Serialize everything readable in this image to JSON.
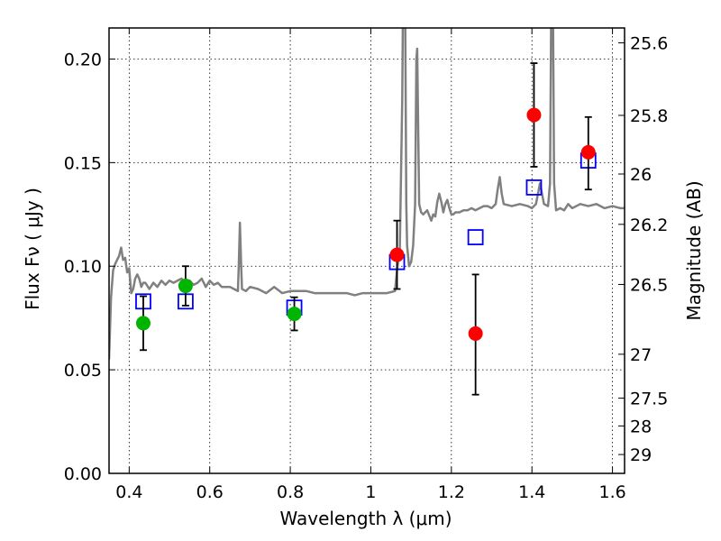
{
  "chart_data": {
    "type": "scatter",
    "xlabel": "Wavelength  λ (μm)",
    "ylabel": "Flux  Fν  ( μJy )",
    "y2label": "Magnitude (AB)",
    "xlim": [
      0.35,
      1.63
    ],
    "ylim": [
      0.0,
      0.215
    ],
    "grid": true,
    "xticks": [
      {
        "value": 0.4,
        "label": "0.4"
      },
      {
        "value": 0.6,
        "label": "0.6"
      },
      {
        "value": 0.8,
        "label": "0.8"
      },
      {
        "value": 1.0,
        "label": "1"
      },
      {
        "value": 1.2,
        "label": "1.2"
      },
      {
        "value": 1.4,
        "label": "1.4"
      },
      {
        "value": 1.6,
        "label": "1.6"
      }
    ],
    "yticks": [
      {
        "value": 0.0,
        "label": "0.00"
      },
      {
        "value": 0.05,
        "label": "0.05"
      },
      {
        "value": 0.1,
        "label": "0.10"
      },
      {
        "value": 0.15,
        "label": "0.15"
      },
      {
        "value": 0.2,
        "label": "0.20"
      }
    ],
    "y2ticks": [
      {
        "flux": 0.2078,
        "label": "25.6"
      },
      {
        "flux": 0.1728,
        "label": "25.8"
      },
      {
        "flux": 0.1445,
        "label": "26"
      },
      {
        "flux": 0.1202,
        "label": "26.2"
      },
      {
        "flux": 0.0912,
        "label": "26.5"
      },
      {
        "flux": 0.0575,
        "label": "27"
      },
      {
        "flux": 0.0363,
        "label": "27.5"
      },
      {
        "flux": 0.0229,
        "label": "28"
      },
      {
        "flux": 0.0091,
        "label": "29"
      }
    ],
    "colors": {
      "model": "#808080",
      "model_photometry": "#0000ff",
      "optical": "#00b400",
      "nir": "#ff0000",
      "errorbar": "#000000"
    },
    "model_spectrum": [
      [
        0.35,
        0.055
      ],
      [
        0.355,
        0.085
      ],
      [
        0.36,
        0.098
      ],
      [
        0.365,
        0.101
      ],
      [
        0.37,
        0.103
      ],
      [
        0.375,
        0.105
      ],
      [
        0.38,
        0.109
      ],
      [
        0.385,
        0.103
      ],
      [
        0.39,
        0.104
      ],
      [
        0.395,
        0.097
      ],
      [
        0.4,
        0.099
      ],
      [
        0.405,
        0.087
      ],
      [
        0.41,
        0.089
      ],
      [
        0.415,
        0.094
      ],
      [
        0.42,
        0.096
      ],
      [
        0.425,
        0.094
      ],
      [
        0.43,
        0.09
      ],
      [
        0.435,
        0.092
      ],
      [
        0.44,
        0.092
      ],
      [
        0.45,
        0.089
      ],
      [
        0.46,
        0.092
      ],
      [
        0.47,
        0.09
      ],
      [
        0.48,
        0.093
      ],
      [
        0.49,
        0.091
      ],
      [
        0.5,
        0.093
      ],
      [
        0.51,
        0.092
      ],
      [
        0.52,
        0.093
      ],
      [
        0.53,
        0.094
      ],
      [
        0.54,
        0.092
      ],
      [
        0.55,
        0.093
      ],
      [
        0.56,
        0.091
      ],
      [
        0.57,
        0.092
      ],
      [
        0.58,
        0.094
      ],
      [
        0.59,
        0.09
      ],
      [
        0.6,
        0.093
      ],
      [
        0.61,
        0.091
      ],
      [
        0.62,
        0.092
      ],
      [
        0.63,
        0.09
      ],
      [
        0.64,
        0.09
      ],
      [
        0.65,
        0.09
      ],
      [
        0.66,
        0.089
      ],
      [
        0.67,
        0.088
      ],
      [
        0.672,
        0.1
      ],
      [
        0.675,
        0.121
      ],
      [
        0.678,
        0.1
      ],
      [
        0.68,
        0.089
      ],
      [
        0.69,
        0.088
      ],
      [
        0.7,
        0.09
      ],
      [
        0.72,
        0.089
      ],
      [
        0.74,
        0.087
      ],
      [
        0.76,
        0.09
      ],
      [
        0.78,
        0.087
      ],
      [
        0.8,
        0.088
      ],
      [
        0.82,
        0.088
      ],
      [
        0.84,
        0.088
      ],
      [
        0.86,
        0.087
      ],
      [
        0.88,
        0.087
      ],
      [
        0.9,
        0.087
      ],
      [
        0.92,
        0.087
      ],
      [
        0.94,
        0.087
      ],
      [
        0.96,
        0.086
      ],
      [
        0.98,
        0.087
      ],
      [
        1.0,
        0.087
      ],
      [
        1.02,
        0.087
      ],
      [
        1.04,
        0.087
      ],
      [
        1.06,
        0.088
      ],
      [
        1.065,
        0.098
      ],
      [
        1.072,
        0.108
      ],
      [
        1.078,
        0.18
      ],
      [
        1.08,
        0.23
      ],
      [
        1.085,
        0.23
      ],
      [
        1.088,
        0.13
      ],
      [
        1.09,
        0.11
      ],
      [
        1.095,
        0.1
      ],
      [
        1.1,
        0.102
      ],
      [
        1.105,
        0.11
      ],
      [
        1.11,
        0.13
      ],
      [
        1.113,
        0.2
      ],
      [
        1.115,
        0.205
      ],
      [
        1.118,
        0.16
      ],
      [
        1.12,
        0.13
      ],
      [
        1.125,
        0.126
      ],
      [
        1.13,
        0.125
      ],
      [
        1.14,
        0.127
      ],
      [
        1.15,
        0.122
      ],
      [
        1.155,
        0.125
      ],
      [
        1.16,
        0.124
      ],
      [
        1.165,
        0.131
      ],
      [
        1.17,
        0.135
      ],
      [
        1.175,
        0.131
      ],
      [
        1.18,
        0.126
      ],
      [
        1.185,
        0.13
      ],
      [
        1.19,
        0.132
      ],
      [
        1.195,
        0.128
      ],
      [
        1.2,
        0.125
      ],
      [
        1.205,
        0.125
      ],
      [
        1.21,
        0.126
      ],
      [
        1.22,
        0.126
      ],
      [
        1.23,
        0.127
      ],
      [
        1.24,
        0.127
      ],
      [
        1.25,
        0.128
      ],
      [
        1.26,
        0.127
      ],
      [
        1.27,
        0.128
      ],
      [
        1.28,
        0.129
      ],
      [
        1.29,
        0.129
      ],
      [
        1.3,
        0.128
      ],
      [
        1.31,
        0.13
      ],
      [
        1.315,
        0.137
      ],
      [
        1.32,
        0.143
      ],
      [
        1.325,
        0.135
      ],
      [
        1.33,
        0.13
      ],
      [
        1.35,
        0.129
      ],
      [
        1.37,
        0.13
      ],
      [
        1.39,
        0.129
      ],
      [
        1.4,
        0.128
      ],
      [
        1.41,
        0.13
      ],
      [
        1.42,
        0.14
      ],
      [
        1.43,
        0.13
      ],
      [
        1.44,
        0.129
      ],
      [
        1.445,
        0.14
      ],
      [
        1.448,
        0.23
      ],
      [
        1.452,
        0.23
      ],
      [
        1.455,
        0.14
      ],
      [
        1.46,
        0.127
      ],
      [
        1.47,
        0.128
      ],
      [
        1.48,
        0.127
      ],
      [
        1.49,
        0.13
      ],
      [
        1.5,
        0.128
      ],
      [
        1.52,
        0.13
      ],
      [
        1.54,
        0.129
      ],
      [
        1.56,
        0.13
      ],
      [
        1.58,
        0.128
      ],
      [
        1.6,
        0.129
      ],
      [
        1.62,
        0.128
      ],
      [
        1.63,
        0.128
      ]
    ],
    "model_photometry": [
      {
        "x": 0.435,
        "y": 0.083
      },
      {
        "x": 0.54,
        "y": 0.083
      },
      {
        "x": 0.81,
        "y": 0.08
      },
      {
        "x": 1.065,
        "y": 0.102
      },
      {
        "x": 1.26,
        "y": 0.114
      },
      {
        "x": 1.405,
        "y": 0.138
      },
      {
        "x": 1.54,
        "y": 0.151
      }
    ],
    "observed_optical": [
      {
        "x": 0.435,
        "y": 0.0725,
        "err_low": 0.0595,
        "err_high": 0.0855
      },
      {
        "x": 0.54,
        "y": 0.0905,
        "err_low": 0.081,
        "err_high": 0.1
      },
      {
        "x": 0.81,
        "y": 0.077,
        "err_low": 0.069,
        "err_high": 0.085
      }
    ],
    "observed_nir": [
      {
        "x": 1.065,
        "y": 0.1055,
        "err_low": 0.089,
        "err_high": 0.122
      },
      {
        "x": 1.26,
        "y": 0.0675,
        "err_low": 0.038,
        "err_high": 0.096
      },
      {
        "x": 1.405,
        "y": 0.173,
        "err_low": 0.148,
        "err_high": 0.198
      },
      {
        "x": 1.54,
        "y": 0.155,
        "err_low": 0.137,
        "err_high": 0.172
      }
    ]
  }
}
